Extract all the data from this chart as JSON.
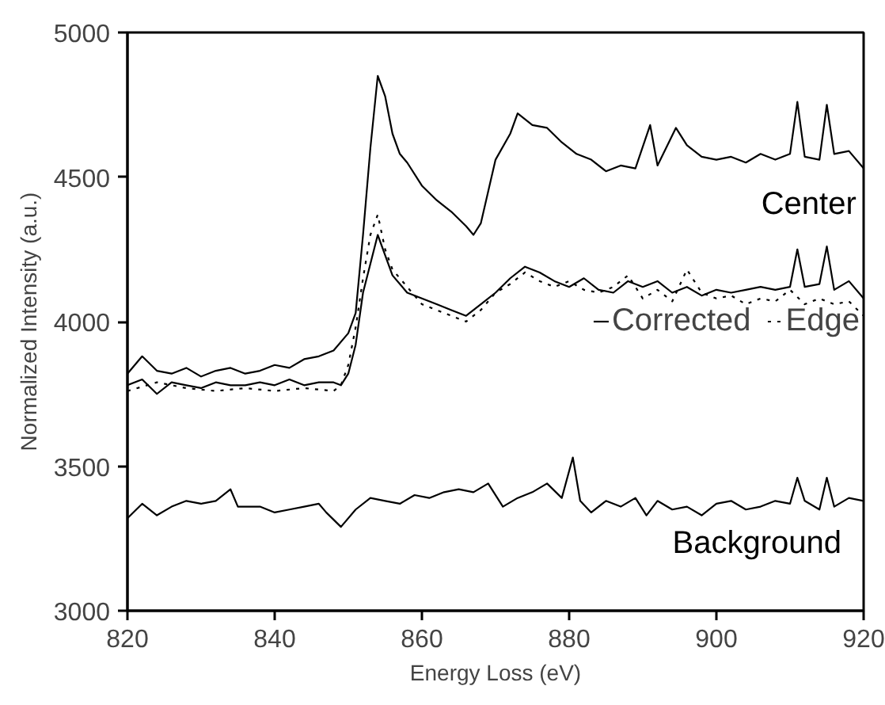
{
  "chart_data": {
    "type": "line",
    "xlabel": "Energy Loss (eV)",
    "ylabel": "Normalized Intensity (a.u.)",
    "xlim": [
      820,
      920
    ],
    "ylim": [
      3000,
      5000
    ],
    "xticks": [
      820,
      840,
      860,
      880,
      900,
      920
    ],
    "yticks": [
      3000,
      3500,
      4000,
      4500,
      5000
    ],
    "grid": false,
    "legend": "right",
    "series": [
      {
        "name": "Center",
        "color": "#000000",
        "line_style": "solid",
        "x": [
          820,
          822,
          824,
          826,
          828,
          830,
          832,
          834,
          836,
          838,
          840,
          842,
          844,
          846,
          848,
          850,
          851,
          852,
          853,
          854,
          855,
          856,
          857,
          858,
          860,
          862,
          864,
          866,
          867,
          868,
          869,
          870,
          872,
          873,
          875,
          877,
          879,
          881,
          883,
          885,
          887,
          889,
          891,
          892,
          894.5,
          896,
          898,
          900,
          902,
          904,
          906,
          908,
          910,
          911,
          912,
          914,
          915,
          916,
          918,
          920
        ],
        "values": [
          3820,
          3880,
          3830,
          3820,
          3840,
          3810,
          3830,
          3840,
          3820,
          3830,
          3850,
          3840,
          3870,
          3880,
          3900,
          3960,
          4030,
          4300,
          4600,
          4850,
          4780,
          4650,
          4580,
          4550,
          4470,
          4420,
          4380,
          4330,
          4300,
          4340,
          4450,
          4560,
          4650,
          4720,
          4680,
          4670,
          4620,
          4580,
          4560,
          4520,
          4540,
          4530,
          4680,
          4540,
          4670,
          4610,
          4570,
          4560,
          4570,
          4550,
          4580,
          4560,
          4580,
          4760,
          4570,
          4560,
          4750,
          4580,
          4590,
          4530
        ]
      },
      {
        "name": "Corrected",
        "color": "#000000",
        "line_style": "solid",
        "x": [
          820,
          822,
          824,
          826,
          828,
          830,
          832,
          834,
          836,
          838,
          840,
          842,
          844,
          846,
          848,
          849,
          850,
          851,
          852,
          853,
          854,
          855,
          856,
          858,
          860,
          862,
          864,
          866,
          868,
          870,
          872,
          874,
          876,
          878,
          880,
          882,
          884,
          886,
          888,
          890,
          892,
          894,
          896,
          898,
          900,
          902,
          904,
          906,
          908,
          910,
          911,
          912,
          914,
          915,
          916,
          918,
          920
        ],
        "values": [
          3780,
          3800,
          3750,
          3790,
          3780,
          3770,
          3790,
          3780,
          3780,
          3790,
          3780,
          3800,
          3780,
          3790,
          3790,
          3780,
          3820,
          3920,
          4100,
          4200,
          4300,
          4230,
          4160,
          4100,
          4080,
          4060,
          4040,
          4020,
          4060,
          4100,
          4150,
          4190,
          4170,
          4140,
          4120,
          4150,
          4110,
          4100,
          4140,
          4120,
          4140,
          4100,
          4120,
          4090,
          4110,
          4100,
          4110,
          4120,
          4110,
          4120,
          4250,
          4120,
          4130,
          4260,
          4110,
          4140,
          4080
        ]
      },
      {
        "name": "Edge",
        "color": "#000000",
        "line_style": "dotted",
        "x": [
          820,
          824,
          828,
          832,
          836,
          840,
          844,
          848,
          849,
          850,
          851,
          852,
          853,
          854,
          855,
          856,
          858,
          860,
          862,
          864,
          866,
          868,
          870,
          872,
          874,
          876,
          878,
          880,
          882,
          884,
          886,
          888,
          890,
          892,
          894,
          896,
          898,
          900,
          902,
          904,
          906,
          908,
          910,
          912,
          914,
          916,
          918,
          920
        ],
        "values": [
          3760,
          3790,
          3770,
          3760,
          3770,
          3760,
          3770,
          3760,
          3780,
          3850,
          3980,
          4150,
          4300,
          4370,
          4250,
          4180,
          4120,
          4060,
          4040,
          4020,
          4000,
          4040,
          4100,
          4130,
          4170,
          4140,
          4120,
          4140,
          4110,
          4100,
          4120,
          4160,
          4080,
          4110,
          4070,
          4180,
          4100,
          4080,
          4090,
          4060,
          4080,
          4070,
          4110,
          4060,
          4080,
          4060,
          4070,
          4020
        ]
      },
      {
        "name": "Background",
        "color": "#000000",
        "line_style": "solid",
        "x": [
          820,
          822,
          824,
          826,
          828,
          830,
          832,
          834,
          835,
          838,
          840,
          842,
          844,
          846,
          847,
          849,
          851,
          853,
          855,
          857,
          859,
          861,
          863,
          865,
          867,
          869,
          871,
          873,
          875,
          877,
          879,
          880.5,
          881.5,
          883,
          885,
          887,
          889,
          890.5,
          892,
          894,
          896,
          898,
          900,
          902,
          904,
          906,
          908,
          910,
          911,
          912,
          914,
          915,
          916,
          918,
          920
        ],
        "values": [
          3320,
          3370,
          3330,
          3360,
          3380,
          3370,
          3380,
          3420,
          3360,
          3360,
          3340,
          3350,
          3360,
          3370,
          3340,
          3290,
          3350,
          3390,
          3380,
          3370,
          3400,
          3390,
          3410,
          3420,
          3410,
          3440,
          3360,
          3390,
          3410,
          3440,
          3390,
          3530,
          3380,
          3340,
          3380,
          3360,
          3390,
          3330,
          3380,
          3350,
          3360,
          3330,
          3370,
          3380,
          3350,
          3360,
          3380,
          3370,
          3460,
          3380,
          3350,
          3460,
          3360,
          3390,
          3380
        ]
      }
    ]
  }
}
